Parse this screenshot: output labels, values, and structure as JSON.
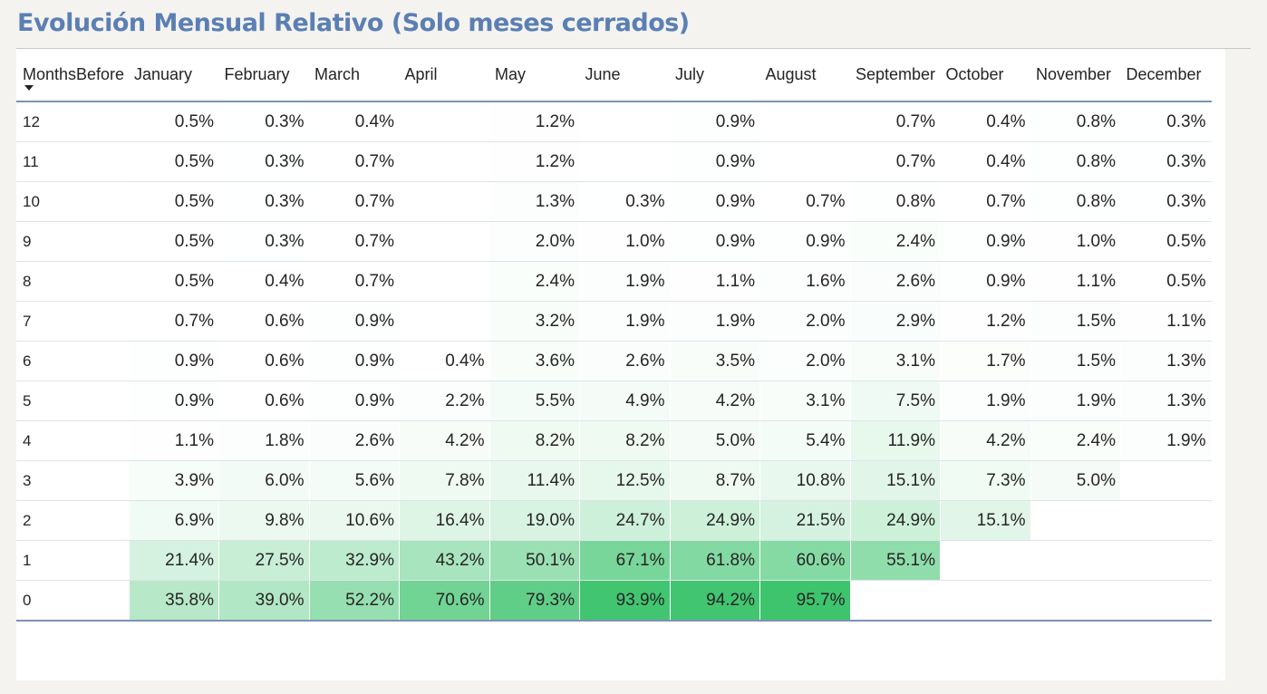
{
  "title": "Evolución Mensual Relativo (Solo meses cerrados)",
  "row_header": "MonthsBefore",
  "sort_icon": "sort-descending-icon",
  "columns": [
    "January",
    "February",
    "March",
    "April",
    "May",
    "June",
    "July",
    "August",
    "September",
    "October",
    "November",
    "December"
  ],
  "rows": [
    {
      "label": "12",
      "values": [
        "0.5%",
        "0.3%",
        "0.4%",
        "",
        "1.2%",
        "",
        "0.9%",
        "",
        "0.7%",
        "0.4%",
        "0.8%",
        "0.3%"
      ]
    },
    {
      "label": "11",
      "values": [
        "0.5%",
        "0.3%",
        "0.7%",
        "",
        "1.2%",
        "",
        "0.9%",
        "",
        "0.7%",
        "0.4%",
        "0.8%",
        "0.3%"
      ]
    },
    {
      "label": "10",
      "values": [
        "0.5%",
        "0.3%",
        "0.7%",
        "",
        "1.3%",
        "0.3%",
        "0.9%",
        "0.7%",
        "0.8%",
        "0.7%",
        "0.8%",
        "0.3%"
      ]
    },
    {
      "label": "9",
      "values": [
        "0.5%",
        "0.3%",
        "0.7%",
        "",
        "2.0%",
        "1.0%",
        "0.9%",
        "0.9%",
        "2.4%",
        "0.9%",
        "1.0%",
        "0.5%"
      ]
    },
    {
      "label": "8",
      "values": [
        "0.5%",
        "0.4%",
        "0.7%",
        "",
        "2.4%",
        "1.9%",
        "1.1%",
        "1.6%",
        "2.6%",
        "0.9%",
        "1.1%",
        "0.5%"
      ]
    },
    {
      "label": "7",
      "values": [
        "0.7%",
        "0.6%",
        "0.9%",
        "",
        "3.2%",
        "1.9%",
        "1.9%",
        "2.0%",
        "2.9%",
        "1.2%",
        "1.5%",
        "1.1%"
      ]
    },
    {
      "label": "6",
      "values": [
        "0.9%",
        "0.6%",
        "0.9%",
        "0.4%",
        "3.6%",
        "2.6%",
        "3.5%",
        "2.0%",
        "3.1%",
        "1.7%",
        "1.5%",
        "1.3%"
      ]
    },
    {
      "label": "5",
      "values": [
        "0.9%",
        "0.6%",
        "0.9%",
        "2.2%",
        "5.5%",
        "4.9%",
        "4.2%",
        "3.1%",
        "7.5%",
        "1.9%",
        "1.9%",
        "1.3%"
      ]
    },
    {
      "label": "4",
      "values": [
        "1.1%",
        "1.8%",
        "2.6%",
        "4.2%",
        "8.2%",
        "8.2%",
        "5.0%",
        "5.4%",
        "11.9%",
        "4.2%",
        "2.4%",
        "1.9%"
      ]
    },
    {
      "label": "3",
      "values": [
        "3.9%",
        "6.0%",
        "5.6%",
        "7.8%",
        "11.4%",
        "12.5%",
        "8.7%",
        "10.8%",
        "15.1%",
        "7.3%",
        "5.0%",
        ""
      ]
    },
    {
      "label": "2",
      "values": [
        "6.9%",
        "9.8%",
        "10.6%",
        "16.4%",
        "19.0%",
        "24.7%",
        "24.9%",
        "21.5%",
        "24.9%",
        "15.1%",
        "",
        ""
      ]
    },
    {
      "label": "1",
      "values": [
        "21.4%",
        "27.5%",
        "32.9%",
        "43.2%",
        "50.1%",
        "67.1%",
        "61.8%",
        "60.6%",
        "55.1%",
        "",
        "",
        ""
      ]
    },
    {
      "label": "0",
      "values": [
        "35.8%",
        "39.0%",
        "52.2%",
        "70.6%",
        "79.3%",
        "93.9%",
        "94.2%",
        "95.7%",
        "",
        "",
        "",
        ""
      ]
    }
  ],
  "colors": {
    "title": "#5b7fb3",
    "scale_min": "#ffffff",
    "scale_max": "#3ec46e",
    "header_rule": "#7b92b5"
  }
}
